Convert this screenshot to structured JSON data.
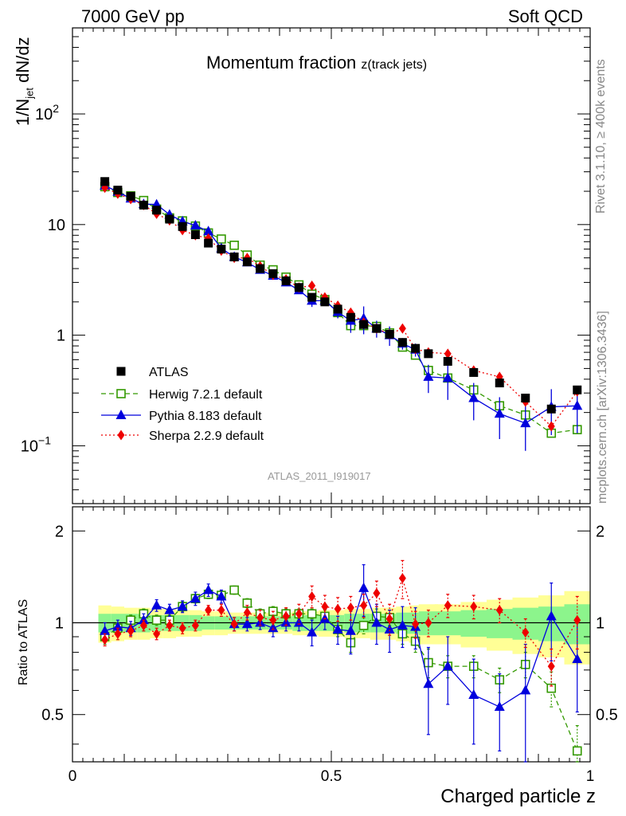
{
  "header": {
    "left": "7000 GeV pp",
    "right": "Soft QCD"
  },
  "side_text": {
    "rivet": "Rivet 3.1.10, ≥ 400k events",
    "mcplots": "mcplots.cern.ch [arXiv:1306.3436]"
  },
  "analysis_id": "ATLAS_2011_I919017",
  "colors": {
    "atlas": "#000000",
    "herwig": "#339900",
    "pythia": "#0000dd",
    "sherpa": "#ee0000",
    "band_inner": "#8cf58c",
    "band_outer": "#ffff96"
  },
  "chart_data": [
    {
      "type": "line",
      "title": "Momentum fraction",
      "title_sub": "z(track jets)",
      "ylabel_main": "1/N",
      "ylabel_sub": "jet",
      "ylabel_tail": " dN/dz",
      "yscale": "log",
      "xlim": [
        0,
        1
      ],
      "ylim": [
        0.03,
        600
      ],
      "x_tick_labels": [
        "0",
        "0.5",
        "1"
      ],
      "y_tick_labels": [
        {
          "value": 0.1,
          "label": "10",
          "sup": "−1"
        },
        {
          "value": 1,
          "label": "1",
          "sup": ""
        },
        {
          "value": 10,
          "label": "10",
          "sup": ""
        },
        {
          "value": 100,
          "label": "10",
          "sup": "2"
        }
      ],
      "x": [
        0.0625,
        0.0875,
        0.1125,
        0.1375,
        0.1625,
        0.1875,
        0.2125,
        0.2375,
        0.2625,
        0.2875,
        0.3125,
        0.3375,
        0.3625,
        0.3875,
        0.4125,
        0.4375,
        0.4625,
        0.4875,
        0.5125,
        0.5375,
        0.5625,
        0.5875,
        0.6125,
        0.6375,
        0.6625,
        0.6875,
        0.725,
        0.775,
        0.825,
        0.875,
        0.925,
        0.975
      ],
      "series": [
        {
          "name": "ATLAS",
          "marker": "square",
          "values": [
            24.5,
            20.5,
            18,
            15,
            13.5,
            11.2,
            9.6,
            8.1,
            6.8,
            6.0,
            5.1,
            4.6,
            4.0,
            3.6,
            3.1,
            2.7,
            2.2,
            2.0,
            1.72,
            1.45,
            1.25,
            1.15,
            1.02,
            0.86,
            0.76,
            0.68,
            0.58,
            0.46,
            0.37,
            0.27,
            0.215,
            0.32
          ]
        },
        {
          "name": "Herwig 7.2.1 default",
          "marker": "open-square",
          "dash": "dashed",
          "values": [
            22,
            19.5,
            18.2,
            16.5,
            13.8,
            11.5,
            10.8,
            9.7,
            8.4,
            7.4,
            6.5,
            5.3,
            4.3,
            3.9,
            3.35,
            2.85,
            2.35,
            2.1,
            1.6,
            1.22,
            1.22,
            1.2,
            1.05,
            0.78,
            0.66,
            0.48,
            0.41,
            0.32,
            0.23,
            0.19,
            0.13,
            0.14
          ]
        },
        {
          "name": "Pythia 8.183 default",
          "marker": "triangle",
          "dash": "solid",
          "values": [
            22.5,
            19.8,
            17.2,
            15.3,
            15.2,
            12.3,
            10.7,
            9.8,
            8.7,
            6.1,
            5.1,
            4.55,
            3.9,
            3.45,
            3.0,
            2.55,
            2.05,
            2.05,
            1.62,
            1.35,
            1.42,
            1.15,
            1.0,
            0.84,
            0.74,
            0.42,
            0.41,
            0.27,
            0.195,
            0.16,
            0.225,
            0.23
          ],
          "errors": [
            0.5,
            0.5,
            0.4,
            0.4,
            0.5,
            0.4,
            0.4,
            0.4,
            0.4,
            0.3,
            0.2,
            0.2,
            0.2,
            0.2,
            0.2,
            0.15,
            0.25,
            0.2,
            0.2,
            0.3,
            0.4,
            0.2,
            0.2,
            0.1,
            0.1,
            0.12,
            0.15,
            0.1,
            0.08,
            0.07,
            0.1,
            0.1
          ]
        },
        {
          "name": "Sherpa 2.2.9 default",
          "marker": "diamond",
          "dash": "dotted",
          "values": [
            21.5,
            19,
            17,
            15,
            12.5,
            10.9,
            8.9,
            8.0,
            7.5,
            5.8,
            5.0,
            5.0,
            4.2,
            3.5,
            3.2,
            2.7,
            2.8,
            2.2,
            1.85,
            1.6,
            1.3,
            1.15,
            1.02,
            1.15,
            0.75,
            0.7,
            0.68,
            0.48,
            0.42,
            0.25,
            0.15,
            0.31
          ]
        }
      ]
    },
    {
      "type": "line",
      "ylabel": "Ratio to ATLAS",
      "xlabel": "Charged particle z",
      "yscale": "log",
      "xlim": [
        0,
        1
      ],
      "ylim": [
        0.35,
        2.4
      ],
      "x_tick_labels": [
        "0",
        "0.5",
        "1"
      ],
      "y_tick_labels": [
        "0.5",
        "1",
        "2"
      ],
      "x": [
        0.0625,
        0.0875,
        0.1125,
        0.1375,
        0.1625,
        0.1875,
        0.2125,
        0.2375,
        0.2625,
        0.2875,
        0.3125,
        0.3375,
        0.3625,
        0.3875,
        0.4125,
        0.4375,
        0.4625,
        0.4875,
        0.5125,
        0.5375,
        0.5625,
        0.5875,
        0.6125,
        0.6375,
        0.6625,
        0.6875,
        0.725,
        0.775,
        0.825,
        0.875,
        0.925,
        0.975
      ],
      "band_inner": [
        0.07,
        0.07,
        0.07,
        0.07,
        0.06,
        0.06,
        0.06,
        0.06,
        0.05,
        0.05,
        0.05,
        0.05,
        0.05,
        0.05,
        0.05,
        0.06,
        0.06,
        0.06,
        0.06,
        0.07,
        0.07,
        0.07,
        0.07,
        0.08,
        0.08,
        0.09,
        0.09,
        0.1,
        0.11,
        0.12,
        0.13,
        0.15
      ],
      "band_outer": [
        0.14,
        0.13,
        0.12,
        0.12,
        0.11,
        0.11,
        0.1,
        0.1,
        0.09,
        0.09,
        0.08,
        0.08,
        0.08,
        0.08,
        0.08,
        0.09,
        0.09,
        0.1,
        0.1,
        0.11,
        0.11,
        0.12,
        0.12,
        0.13,
        0.14,
        0.15,
        0.15,
        0.17,
        0.19,
        0.21,
        0.23,
        0.27
      ],
      "series": [
        {
          "name": "Herwig 7.2.1 default",
          "marker": "open-square",
          "dash": "dashed",
          "values": [
            0.9,
            0.96,
            1.02,
            1.07,
            1.02,
            1.02,
            1.13,
            1.2,
            1.24,
            1.23,
            1.28,
            1.16,
            1.07,
            1.09,
            1.07,
            1.07,
            1.07,
            1.05,
            0.95,
            0.86,
            0.98,
            1.05,
            1.04,
            0.92,
            0.87,
            0.74,
            0.72,
            0.72,
            0.65,
            0.73,
            0.61,
            0.38
          ],
          "errors": [
            0.05,
            0.04,
            0.04,
            0.04,
            0.04,
            0.04,
            0.04,
            0.04,
            0.04,
            0.04,
            0.04,
            0.04,
            0.04,
            0.04,
            0.04,
            0.04,
            0.04,
            0.05,
            0.05,
            0.06,
            0.06,
            0.06,
            0.06,
            0.07,
            0.07,
            0.08,
            0.06,
            0.06,
            0.06,
            0.07,
            0.08,
            0.08
          ]
        },
        {
          "name": "Pythia 8.183 default",
          "marker": "triangle",
          "dash": "solid",
          "values": [
            0.94,
            0.97,
            0.96,
            1.02,
            1.14,
            1.1,
            1.13,
            1.2,
            1.28,
            1.22,
            0.99,
            0.99,
            1.0,
            0.96,
            1.0,
            1.0,
            0.93,
            1.03,
            0.95,
            0.94,
            1.3,
            1.0,
            0.95,
            0.98,
            0.97,
            0.63,
            0.72,
            0.58,
            0.53,
            0.6,
            1.05,
            0.76
          ],
          "errors": [
            0.06,
            0.05,
            0.05,
            0.05,
            0.05,
            0.05,
            0.05,
            0.06,
            0.06,
            0.06,
            0.05,
            0.05,
            0.05,
            0.06,
            0.06,
            0.06,
            0.09,
            0.08,
            0.1,
            0.15,
            0.25,
            0.15,
            0.15,
            0.15,
            0.15,
            0.2,
            0.18,
            0.18,
            0.15,
            0.25,
            0.3,
            0.25
          ]
        },
        {
          "name": "Sherpa 2.2.9 default",
          "marker": "diamond",
          "dash": "dotted",
          "values": [
            0.88,
            0.92,
            0.94,
            0.98,
            0.92,
            0.98,
            0.96,
            0.98,
            1.1,
            1.1,
            0.99,
            1.08,
            1.04,
            1.02,
            1.05,
            1.07,
            1.22,
            1.13,
            1.11,
            1.12,
            1.14,
            1.25,
            1.03,
            1.4,
            0.99,
            1.0,
            1.14,
            1.13,
            1.1,
            0.93,
            0.72,
            1.02
          ],
          "errors": [
            0.04,
            0.04,
            0.04,
            0.04,
            0.04,
            0.04,
            0.04,
            0.04,
            0.04,
            0.05,
            0.05,
            0.06,
            0.06,
            0.07,
            0.07,
            0.08,
            0.1,
            0.1,
            0.1,
            0.1,
            0.1,
            0.12,
            0.12,
            0.2,
            0.1,
            0.1,
            0.1,
            0.1,
            0.1,
            0.1,
            0.1,
            0.2
          ]
        }
      ]
    }
  ]
}
